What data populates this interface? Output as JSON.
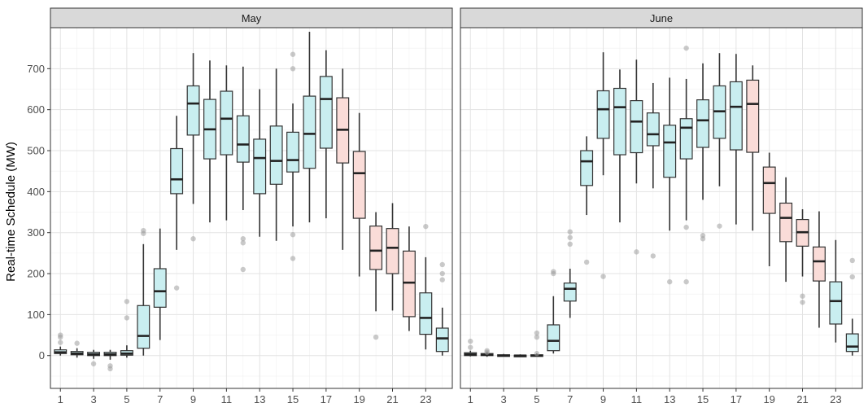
{
  "chart_data": {
    "type": "boxplot",
    "ylabel": "Real-time Schedule (MW)",
    "xlabel": "",
    "ylim": [
      -80,
      800
    ],
    "yticks": [
      0,
      100,
      200,
      300,
      400,
      500,
      600,
      700
    ],
    "xticks": [
      1,
      3,
      5,
      7,
      9,
      11,
      13,
      15,
      17,
      19,
      21,
      23
    ],
    "grid": true,
    "fill_colors": {
      "weekday": "#c9eef0",
      "peak": "#fadcd8",
      "night": "#d0ecef"
    },
    "panels": [
      {
        "title": "May",
        "boxes": [
          {
            "hour": 1,
            "min": 0,
            "q1": 5,
            "median": 8,
            "q3": 14,
            "max": 22,
            "fill": "night",
            "outliers": [
              45,
              50,
              32
            ]
          },
          {
            "hour": 2,
            "min": -5,
            "q1": 2,
            "median": 5,
            "q3": 10,
            "max": 18,
            "fill": "night",
            "outliers": [
              30
            ]
          },
          {
            "hour": 3,
            "min": -8,
            "q1": 0,
            "median": 3,
            "q3": 8,
            "max": 14,
            "fill": "night",
            "outliers": [
              -20
            ]
          },
          {
            "hour": 4,
            "min": -10,
            "q1": 0,
            "median": 3,
            "q3": 8,
            "max": 14,
            "fill": "night",
            "outliers": [
              -25,
              -32
            ]
          },
          {
            "hour": 5,
            "min": -5,
            "q1": 1,
            "median": 5,
            "q3": 12,
            "max": 25,
            "fill": "weekday",
            "outliers": [
              92,
              132
            ]
          },
          {
            "hour": 6,
            "min": 0,
            "q1": 18,
            "median": 48,
            "q3": 122,
            "max": 272,
            "fill": "weekday",
            "outliers": [
              298,
              305
            ]
          },
          {
            "hour": 7,
            "min": 38,
            "q1": 118,
            "median": 157,
            "q3": 212,
            "max": 310,
            "fill": "weekday",
            "outliers": []
          },
          {
            "hour": 8,
            "min": 258,
            "q1": 395,
            "median": 430,
            "q3": 505,
            "max": 585,
            "fill": "weekday",
            "outliers": [
              165
            ]
          },
          {
            "hour": 9,
            "min": 370,
            "q1": 538,
            "median": 615,
            "q3": 658,
            "max": 738,
            "fill": "weekday",
            "outliers": [
              285
            ]
          },
          {
            "hour": 10,
            "min": 325,
            "q1": 480,
            "median": 552,
            "q3": 625,
            "max": 720,
            "fill": "weekday",
            "outliers": []
          },
          {
            "hour": 11,
            "min": 330,
            "q1": 490,
            "median": 578,
            "q3": 645,
            "max": 708,
            "fill": "weekday",
            "outliers": []
          },
          {
            "hour": 12,
            "min": 355,
            "q1": 472,
            "median": 515,
            "q3": 585,
            "max": 705,
            "fill": "weekday",
            "outliers": [
              285,
              275,
              210
            ]
          },
          {
            "hour": 13,
            "min": 290,
            "q1": 395,
            "median": 482,
            "q3": 528,
            "max": 650,
            "fill": "weekday",
            "outliers": []
          },
          {
            "hour": 14,
            "min": 280,
            "q1": 418,
            "median": 475,
            "q3": 560,
            "max": 700,
            "fill": "weekday",
            "outliers": []
          },
          {
            "hour": 15,
            "min": 315,
            "q1": 448,
            "median": 477,
            "q3": 545,
            "max": 615,
            "fill": "weekday",
            "outliers": [
              295,
              237,
              700,
              735
            ]
          },
          {
            "hour": 16,
            "min": 325,
            "q1": 457,
            "median": 541,
            "q3": 633,
            "max": 790,
            "fill": "weekday",
            "outliers": []
          },
          {
            "hour": 17,
            "min": 335,
            "q1": 506,
            "median": 626,
            "q3": 681,
            "max": 745,
            "fill": "weekday",
            "outliers": []
          },
          {
            "hour": 18,
            "min": 258,
            "q1": 470,
            "median": 551,
            "q3": 629,
            "max": 700,
            "fill": "peak",
            "outliers": []
          },
          {
            "hour": 19,
            "min": 193,
            "q1": 335,
            "median": 445,
            "q3": 498,
            "max": 592,
            "fill": "peak",
            "outliers": []
          },
          {
            "hour": 20,
            "min": 108,
            "q1": 210,
            "median": 256,
            "q3": 316,
            "max": 350,
            "fill": "peak",
            "outliers": [
              45
            ]
          },
          {
            "hour": 21,
            "min": 110,
            "q1": 200,
            "median": 263,
            "q3": 310,
            "max": 372,
            "fill": "peak",
            "outliers": []
          },
          {
            "hour": 22,
            "min": 60,
            "q1": 95,
            "median": 178,
            "q3": 255,
            "max": 315,
            "fill": "peak",
            "outliers": []
          },
          {
            "hour": 23,
            "min": 15,
            "q1": 52,
            "median": 92,
            "q3": 153,
            "max": 240,
            "fill": "weekday",
            "outliers": [
              315
            ]
          },
          {
            "hour": 24,
            "min": 0,
            "q1": 10,
            "median": 42,
            "q3": 67,
            "max": 117,
            "fill": "weekday",
            "outliers": [
              222,
              200,
              185
            ]
          }
        ]
      },
      {
        "title": "June",
        "boxes": [
          {
            "hour": 1,
            "min": -2,
            "q1": 0,
            "median": 3,
            "q3": 7,
            "max": 12,
            "fill": "night",
            "outliers": [
              35,
              20
            ]
          },
          {
            "hour": 2,
            "min": -3,
            "q1": 0,
            "median": 2,
            "q3": 5,
            "max": 10,
            "fill": "night",
            "outliers": [
              12,
              8
            ]
          },
          {
            "hour": 3,
            "min": -2,
            "q1": -1,
            "median": 0,
            "q3": 2,
            "max": 4,
            "fill": "night",
            "outliers": []
          },
          {
            "hour": 4,
            "min": -2,
            "q1": -1,
            "median": 0,
            "q3": 1,
            "max": 3,
            "fill": "night",
            "outliers": []
          },
          {
            "hour": 5,
            "min": -2,
            "q1": -1,
            "median": 0,
            "q3": 2,
            "max": 5,
            "fill": "night",
            "outliers": [
              55,
              45,
              5
            ]
          },
          {
            "hour": 6,
            "min": 5,
            "q1": 12,
            "median": 36,
            "q3": 75,
            "max": 145,
            "fill": "weekday",
            "outliers": [
              205,
              200
            ]
          },
          {
            "hour": 7,
            "min": 92,
            "q1": 133,
            "median": 163,
            "q3": 177,
            "max": 212,
            "fill": "weekday",
            "outliers": [
              302,
              288,
              272
            ]
          },
          {
            "hour": 8,
            "min": 343,
            "q1": 415,
            "median": 474,
            "q3": 500,
            "max": 535,
            "fill": "weekday",
            "outliers": [
              228
            ]
          },
          {
            "hour": 9,
            "min": 440,
            "q1": 530,
            "median": 601,
            "q3": 646,
            "max": 740,
            "fill": "weekday",
            "outliers": [
              193
            ]
          },
          {
            "hour": 10,
            "min": 325,
            "q1": 490,
            "median": 606,
            "q3": 652,
            "max": 698,
            "fill": "weekday",
            "outliers": []
          },
          {
            "hour": 11,
            "min": 420,
            "q1": 495,
            "median": 571,
            "q3": 622,
            "max": 722,
            "fill": "weekday",
            "outliers": [
              253
            ]
          },
          {
            "hour": 12,
            "min": 408,
            "q1": 512,
            "median": 540,
            "q3": 592,
            "max": 665,
            "fill": "weekday",
            "outliers": [
              243
            ]
          },
          {
            "hour": 13,
            "min": 305,
            "q1": 435,
            "median": 520,
            "q3": 562,
            "max": 678,
            "fill": "weekday",
            "outliers": [
              180
            ]
          },
          {
            "hour": 14,
            "min": 330,
            "q1": 480,
            "median": 556,
            "q3": 578,
            "max": 675,
            "fill": "weekday",
            "outliers": [
              180,
              313,
              750
            ]
          },
          {
            "hour": 15,
            "min": 380,
            "q1": 508,
            "median": 574,
            "q3": 624,
            "max": 713,
            "fill": "weekday",
            "outliers": [
              293,
              285
            ]
          },
          {
            "hour": 16,
            "min": 413,
            "q1": 530,
            "median": 596,
            "q3": 658,
            "max": 738,
            "fill": "weekday",
            "outliers": [
              316
            ]
          },
          {
            "hour": 17,
            "min": 320,
            "q1": 502,
            "median": 607,
            "q3": 668,
            "max": 736,
            "fill": "weekday",
            "outliers": []
          },
          {
            "hour": 18,
            "min": 305,
            "q1": 496,
            "median": 614,
            "q3": 672,
            "max": 708,
            "fill": "peak",
            "outliers": []
          },
          {
            "hour": 19,
            "min": 218,
            "q1": 347,
            "median": 421,
            "q3": 460,
            "max": 495,
            "fill": "peak",
            "outliers": []
          },
          {
            "hour": 20,
            "min": 180,
            "q1": 278,
            "median": 336,
            "q3": 372,
            "max": 435,
            "fill": "peak",
            "outliers": []
          },
          {
            "hour": 21,
            "min": 193,
            "q1": 267,
            "median": 301,
            "q3": 332,
            "max": 357,
            "fill": "peak",
            "outliers": [
              145,
              130
            ]
          },
          {
            "hour": 22,
            "min": 68,
            "q1": 182,
            "median": 230,
            "q3": 265,
            "max": 352,
            "fill": "peak",
            "outliers": []
          },
          {
            "hour": 23,
            "min": 32,
            "q1": 77,
            "median": 133,
            "q3": 180,
            "max": 282,
            "fill": "weekday",
            "outliers": []
          },
          {
            "hour": 24,
            "min": 0,
            "q1": 10,
            "median": 22,
            "q3": 53,
            "max": 90,
            "fill": "weekday",
            "outliers": [
              232,
              192
            ]
          }
        ]
      }
    ]
  }
}
